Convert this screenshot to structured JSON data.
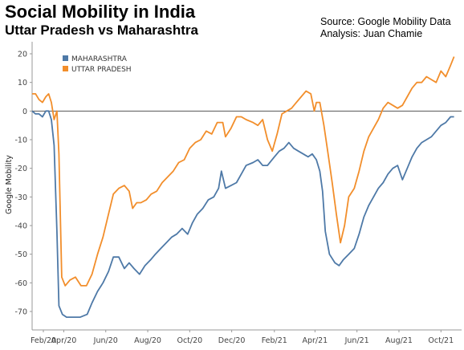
{
  "title": "Social Mobility in India",
  "subtitle": "Uttar Pradesh vs Maharashtra",
  "source_line1": "Source: Google Mobility Data",
  "source_line2": "Analysis:  Juan Chamie",
  "chart_data": {
    "type": "line",
    "ylabel": "Google Mobility",
    "xlabel": "",
    "ylim": [
      -75,
      22
    ],
    "yticks": [
      20,
      10,
      0,
      -10,
      -20,
      -30,
      -40,
      -50,
      -60,
      -70
    ],
    "xticks": [
      "Feb/20",
      "Apr/20",
      "Jun/20",
      "Aug/20",
      "Oct/20",
      "Dec/20",
      "Feb/21",
      "Apr/21",
      "Jun/21",
      "Aug/21",
      "Oct/21"
    ],
    "x_range": [
      "2020-02-15",
      "2021-10-31"
    ],
    "grid": false,
    "legend_position": "top-left",
    "colors": {
      "maharashtra": "#4e79a7",
      "uttar_pradesh": "#f28e2b"
    },
    "series": [
      {
        "name": "MAHARASHTRA",
        "color": "#4e79a7",
        "points": [
          [
            "2020-02-15",
            0
          ],
          [
            "2020-02-20",
            -1
          ],
          [
            "2020-02-25",
            -1
          ],
          [
            "2020-03-01",
            -2
          ],
          [
            "2020-03-06",
            0
          ],
          [
            "2020-03-10",
            0
          ],
          [
            "2020-03-14",
            -3
          ],
          [
            "2020-03-18",
            -12
          ],
          [
            "2020-03-22",
            -42
          ],
          [
            "2020-03-25",
            -68
          ],
          [
            "2020-03-30",
            -71
          ],
          [
            "2020-04-05",
            -72
          ],
          [
            "2020-04-15",
            -72
          ],
          [
            "2020-04-25",
            -72
          ],
          [
            "2020-05-05",
            -71
          ],
          [
            "2020-05-12",
            -67
          ],
          [
            "2020-05-20",
            -63
          ],
          [
            "2020-05-28",
            -60
          ],
          [
            "2020-06-05",
            -56
          ],
          [
            "2020-06-12",
            -51
          ],
          [
            "2020-06-20",
            -51
          ],
          [
            "2020-06-28",
            -55
          ],
          [
            "2020-07-05",
            -53
          ],
          [
            "2020-07-12",
            -55
          ],
          [
            "2020-07-20",
            -57
          ],
          [
            "2020-07-28",
            -54
          ],
          [
            "2020-08-05",
            -52
          ],
          [
            "2020-08-12",
            -50
          ],
          [
            "2020-08-20",
            -48
          ],
          [
            "2020-08-28",
            -46
          ],
          [
            "2020-09-05",
            -44
          ],
          [
            "2020-09-12",
            -43
          ],
          [
            "2020-09-20",
            -41
          ],
          [
            "2020-09-28",
            -43
          ],
          [
            "2020-10-05",
            -39
          ],
          [
            "2020-10-12",
            -36
          ],
          [
            "2020-10-20",
            -34
          ],
          [
            "2020-10-28",
            -31
          ],
          [
            "2020-11-05",
            -30
          ],
          [
            "2020-11-12",
            -27
          ],
          [
            "2020-11-16",
            -21
          ],
          [
            "2020-11-22",
            -27
          ],
          [
            "2020-11-30",
            -26
          ],
          [
            "2020-12-08",
            -25
          ],
          [
            "2020-12-15",
            -22
          ],
          [
            "2020-12-22",
            -19
          ],
          [
            "2021-01-01",
            -18
          ],
          [
            "2021-01-08",
            -17
          ],
          [
            "2021-01-15",
            -19
          ],
          [
            "2021-01-22",
            -19
          ],
          [
            "2021-02-01",
            -16
          ],
          [
            "2021-02-08",
            -14
          ],
          [
            "2021-02-15",
            -13
          ],
          [
            "2021-02-22",
            -11
          ],
          [
            "2021-03-01",
            -13
          ],
          [
            "2021-03-08",
            -14
          ],
          [
            "2021-03-15",
            -15
          ],
          [
            "2021-03-22",
            -16
          ],
          [
            "2021-03-28",
            -15
          ],
          [
            "2021-04-03",
            -17
          ],
          [
            "2021-04-08",
            -21
          ],
          [
            "2021-04-12",
            -28
          ],
          [
            "2021-04-16",
            -42
          ],
          [
            "2021-04-22",
            -50
          ],
          [
            "2021-04-30",
            -53
          ],
          [
            "2021-05-06",
            -54
          ],
          [
            "2021-05-12",
            -52
          ],
          [
            "2021-05-20",
            -50
          ],
          [
            "2021-05-28",
            -48
          ],
          [
            "2021-06-04",
            -43
          ],
          [
            "2021-06-11",
            -37
          ],
          [
            "2021-06-18",
            -33
          ],
          [
            "2021-06-25",
            -30
          ],
          [
            "2021-07-02",
            -27
          ],
          [
            "2021-07-09",
            -25
          ],
          [
            "2021-07-16",
            -22
          ],
          [
            "2021-07-23",
            -20
          ],
          [
            "2021-07-30",
            -19
          ],
          [
            "2021-08-06",
            -24
          ],
          [
            "2021-08-13",
            -20
          ],
          [
            "2021-08-20",
            -16
          ],
          [
            "2021-08-27",
            -13
          ],
          [
            "2021-09-03",
            -11
          ],
          [
            "2021-09-10",
            -10
          ],
          [
            "2021-09-17",
            -9
          ],
          [
            "2021-09-24",
            -7
          ],
          [
            "2021-10-01",
            -5
          ],
          [
            "2021-10-08",
            -4
          ],
          [
            "2021-10-15",
            -2
          ],
          [
            "2021-10-20",
            -2
          ]
        ]
      },
      {
        "name": "UTTAR PRADESH",
        "color": "#f28e2b",
        "points": [
          [
            "2020-02-15",
            6
          ],
          [
            "2020-02-20",
            6
          ],
          [
            "2020-02-25",
            4
          ],
          [
            "2020-03-01",
            3
          ],
          [
            "2020-03-06",
            5
          ],
          [
            "2020-03-10",
            6
          ],
          [
            "2020-03-14",
            3
          ],
          [
            "2020-03-18",
            -3
          ],
          [
            "2020-03-22",
            0
          ],
          [
            "2020-03-25",
            -15
          ],
          [
            "2020-03-29",
            -58
          ],
          [
            "2020-04-03",
            -61
          ],
          [
            "2020-04-10",
            -59
          ],
          [
            "2020-04-18",
            -58
          ],
          [
            "2020-04-26",
            -61
          ],
          [
            "2020-05-04",
            -61
          ],
          [
            "2020-05-12",
            -57
          ],
          [
            "2020-05-20",
            -50
          ],
          [
            "2020-05-28",
            -44
          ],
          [
            "2020-06-04",
            -37
          ],
          [
            "2020-06-12",
            -29
          ],
          [
            "2020-06-20",
            -27
          ],
          [
            "2020-06-28",
            -26
          ],
          [
            "2020-07-05",
            -28
          ],
          [
            "2020-07-10",
            -34
          ],
          [
            "2020-07-16",
            -32
          ],
          [
            "2020-07-22",
            -32
          ],
          [
            "2020-07-30",
            -31
          ],
          [
            "2020-08-06",
            -29
          ],
          [
            "2020-08-14",
            -28
          ],
          [
            "2020-08-22",
            -25
          ],
          [
            "2020-08-30",
            -23
          ],
          [
            "2020-09-07",
            -21
          ],
          [
            "2020-09-15",
            -18
          ],
          [
            "2020-09-23",
            -17
          ],
          [
            "2020-10-01",
            -13
          ],
          [
            "2020-10-09",
            -11
          ],
          [
            "2020-10-17",
            -10
          ],
          [
            "2020-10-25",
            -7
          ],
          [
            "2020-11-02",
            -8
          ],
          [
            "2020-11-10",
            -4
          ],
          [
            "2020-11-18",
            -4
          ],
          [
            "2020-11-22",
            -9
          ],
          [
            "2020-11-30",
            -6
          ],
          [
            "2020-12-08",
            -2
          ],
          [
            "2020-12-15",
            -2
          ],
          [
            "2020-12-22",
            -3
          ],
          [
            "2021-01-01",
            -4
          ],
          [
            "2021-01-08",
            -5
          ],
          [
            "2021-01-15",
            -3
          ],
          [
            "2021-01-22",
            -10
          ],
          [
            "2021-01-29",
            -14
          ],
          [
            "2021-02-05",
            -8
          ],
          [
            "2021-02-12",
            -1
          ],
          [
            "2021-02-19",
            0
          ],
          [
            "2021-02-26",
            1
          ],
          [
            "2021-03-05",
            3
          ],
          [
            "2021-03-12",
            5
          ],
          [
            "2021-03-19",
            7
          ],
          [
            "2021-03-26",
            6
          ],
          [
            "2021-03-31",
            0
          ],
          [
            "2021-04-03",
            3
          ],
          [
            "2021-04-08",
            3
          ],
          [
            "2021-04-14",
            -5
          ],
          [
            "2021-04-20",
            -15
          ],
          [
            "2021-04-26",
            -25
          ],
          [
            "2021-05-02",
            -36
          ],
          [
            "2021-05-08",
            -46
          ],
          [
            "2021-05-14",
            -40
          ],
          [
            "2021-05-20",
            -30
          ],
          [
            "2021-05-28",
            -27
          ],
          [
            "2021-06-04",
            -21
          ],
          [
            "2021-06-11",
            -14
          ],
          [
            "2021-06-18",
            -9
          ],
          [
            "2021-06-25",
            -6
          ],
          [
            "2021-07-02",
            -3
          ],
          [
            "2021-07-09",
            1
          ],
          [
            "2021-07-16",
            3
          ],
          [
            "2021-07-23",
            2
          ],
          [
            "2021-07-30",
            1
          ],
          [
            "2021-08-06",
            2
          ],
          [
            "2021-08-13",
            5
          ],
          [
            "2021-08-20",
            8
          ],
          [
            "2021-08-27",
            10
          ],
          [
            "2021-09-03",
            10
          ],
          [
            "2021-09-10",
            12
          ],
          [
            "2021-09-17",
            11
          ],
          [
            "2021-09-24",
            10
          ],
          [
            "2021-10-01",
            14
          ],
          [
            "2021-10-08",
            12
          ],
          [
            "2021-10-15",
            16
          ],
          [
            "2021-10-20",
            19
          ]
        ]
      }
    ]
  }
}
